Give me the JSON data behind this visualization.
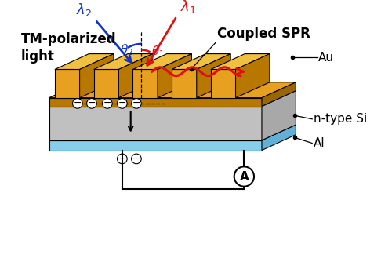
{
  "bg_color": "#ffffff",
  "gold_color": "#E8A020",
  "gold_dark": "#B87800",
  "gold_top": "#F0C040",
  "si_face": "#C0C0C0",
  "si_side": "#A8A8A8",
  "si_top": "#D8D8D8",
  "al_face": "#87CEEB",
  "al_side": "#60B0D8",
  "al_top": "#A8DCF0",
  "arrow_red": "#DD1111",
  "arrow_blue": "#1133CC",
  "label_Au": "Au",
  "label_Si": "n-type Si",
  "label_Al": "Al",
  "label_spr": "Coupled SPR",
  "label_tm": "TM-polarized\nlight",
  "label_lambda1": "$\\lambda_1$",
  "label_lambda2": "$\\lambda_2$",
  "label_theta1": "$\\theta_1$",
  "label_theta2": "$\\theta_2$"
}
